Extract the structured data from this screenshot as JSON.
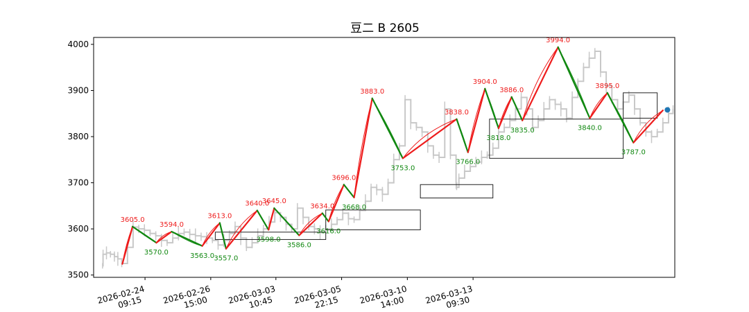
{
  "chart_data": {
    "type": "line",
    "title": "豆二 B 2605",
    "xlabel": "",
    "ylabel": "",
    "ylim": [
      3495,
      4015
    ],
    "xlim": [
      0,
      100
    ],
    "grid": false,
    "legend": "none",
    "y_ticks": [
      3500,
      3600,
      3700,
      3800,
      3900,
      4000
    ],
    "x_ticks": [
      {
        "x": 7.6,
        "label": [
          "2026-02-24",
          "09:15"
        ]
      },
      {
        "x": 19.2,
        "label": [
          "2026-02-26",
          "15:00"
        ]
      },
      {
        "x": 30.7,
        "label": [
          "2026-03-03",
          "10:45"
        ]
      },
      {
        "x": 42.3,
        "label": [
          "2026-03-05",
          "22:15"
        ]
      },
      {
        "x": 53.9,
        "label": [
          "2026-03-10",
          "14:00"
        ]
      },
      {
        "x": 65.5,
        "label": [
          "2026-03-13",
          "09:30"
        ]
      }
    ],
    "colors": {
      "price": "#c8c8c8",
      "up_stroke": "#ee1c1c",
      "down_stroke": "#118811",
      "high_label": "#ee1c1c",
      "low_label": "#118811",
      "box": "#222222",
      "current": "#1f77b4"
    },
    "price": [
      [
        0.1,
        3520
      ],
      [
        0.2,
        3545
      ],
      [
        0.8,
        3548
      ],
      [
        1.5,
        3545
      ],
      [
        2.2,
        3540
      ],
      [
        2.8,
        3535
      ],
      [
        3.5,
        3525
      ],
      [
        4.5,
        3560
      ],
      [
        5.5,
        3604
      ],
      [
        6.5,
        3600
      ],
      [
        7.5,
        3597
      ],
      [
        8.5,
        3590
      ],
      [
        9.5,
        3585
      ],
      [
        10.5,
        3575
      ],
      [
        11.5,
        3570
      ],
      [
        12.5,
        3580
      ],
      [
        13.5,
        3590
      ],
      [
        14.5,
        3593
      ],
      [
        15.5,
        3588
      ],
      [
        16.5,
        3585
      ],
      [
        17.5,
        3583
      ],
      [
        18.5,
        3580
      ],
      [
        19.5,
        3575
      ],
      [
        20.5,
        3565
      ],
      [
        21.5,
        3575
      ],
      [
        22.5,
        3590
      ],
      [
        23.5,
        3605
      ],
      [
        24.5,
        3580
      ],
      [
        25.5,
        3560
      ],
      [
        26.5,
        3570
      ],
      [
        27.5,
        3585
      ],
      [
        28.5,
        3600
      ],
      [
        29.5,
        3615
      ],
      [
        30.5,
        3635
      ],
      [
        31.5,
        3625
      ],
      [
        32.5,
        3610
      ],
      [
        33.5,
        3600
      ],
      [
        34.5,
        3645
      ],
      [
        35.5,
        3625
      ],
      [
        36.5,
        3605
      ],
      [
        37.5,
        3600
      ],
      [
        38.5,
        3592
      ],
      [
        39.5,
        3600
      ],
      [
        40.5,
        3610
      ],
      [
        41.5,
        3620
      ],
      [
        42.5,
        3634
      ],
      [
        43.5,
        3622
      ],
      [
        44.5,
        3620
      ],
      [
        45.5,
        3640
      ],
      [
        46.5,
        3660
      ],
      [
        47.5,
        3690
      ],
      [
        48.5,
        3685
      ],
      [
        49.5,
        3675
      ],
      [
        50.5,
        3700
      ],
      [
        51.5,
        3750
      ],
      [
        52.5,
        3780
      ],
      [
        53.5,
        3880
      ],
      [
        54.5,
        3830
      ],
      [
        55.5,
        3820
      ],
      [
        56.5,
        3810
      ],
      [
        57.5,
        3780
      ],
      [
        58.5,
        3760
      ],
      [
        59.5,
        3755
      ],
      [
        60.5,
        3860
      ],
      [
        61.5,
        3760
      ],
      [
        62.5,
        3700
      ],
      [
        62.6,
        3690
      ],
      [
        63.0,
        3710
      ],
      [
        64.0,
        3725
      ],
      [
        65.0,
        3735
      ],
      [
        66.0,
        3745
      ],
      [
        67.0,
        3755
      ],
      [
        68.0,
        3760
      ],
      [
        69.0,
        3775
      ],
      [
        70.0,
        3810
      ],
      [
        71.0,
        3820
      ],
      [
        72.0,
        3835
      ],
      [
        73.0,
        3860
      ],
      [
        74.0,
        3885
      ],
      [
        75.0,
        3860
      ],
      [
        76.0,
        3820
      ],
      [
        77.0,
        3835
      ],
      [
        78.0,
        3860
      ],
      [
        79.0,
        3880
      ],
      [
        80.0,
        3870
      ],
      [
        81.0,
        3860
      ],
      [
        82.0,
        3840
      ],
      [
        83.0,
        3885
      ],
      [
        84.0,
        3920
      ],
      [
        85.0,
        3950
      ],
      [
        86.0,
        3970
      ],
      [
        87.0,
        3985
      ],
      [
        88.0,
        3940
      ],
      [
        89.0,
        3910
      ],
      [
        90.0,
        3880
      ],
      [
        91.0,
        3860
      ],
      [
        92.0,
        3875
      ],
      [
        93.0,
        3890
      ],
      [
        94.0,
        3860
      ],
      [
        95.0,
        3830
      ],
      [
        96.0,
        3810
      ],
      [
        97.0,
        3800
      ],
      [
        98.0,
        3810
      ],
      [
        99.0,
        3830
      ],
      [
        100.0,
        3850
      ],
      [
        100.8,
        3860
      ]
    ],
    "pivots": [
      {
        "x": 3.6,
        "y": 3524,
        "kind": "low"
      },
      {
        "x": 5.4,
        "y": 3605,
        "kind": "high",
        "label": "3605.0"
      },
      {
        "x": 9.6,
        "y": 3570,
        "kind": "low",
        "label": "3570.0"
      },
      {
        "x": 12.3,
        "y": 3594,
        "kind": "high",
        "label": "3594.0"
      },
      {
        "x": 17.7,
        "y": 3563,
        "kind": "low",
        "label": "3563.0"
      },
      {
        "x": 20.8,
        "y": 3613,
        "kind": "high",
        "label": "3613.0"
      },
      {
        "x": 21.9,
        "y": 3557,
        "kind": "low",
        "label": "3557.0"
      },
      {
        "x": 27.4,
        "y": 3640,
        "kind": "high",
        "label": "3640.0"
      },
      {
        "x": 29.4,
        "y": 3598,
        "kind": "low",
        "label": "3598.0"
      },
      {
        "x": 30.4,
        "y": 3645,
        "kind": "high",
        "label": "3645.0"
      },
      {
        "x": 34.8,
        "y": 3586,
        "kind": "low",
        "label": "3586.0"
      },
      {
        "x": 38.9,
        "y": 3634,
        "kind": "high",
        "label": "3634.0"
      },
      {
        "x": 40.0,
        "y": 3616,
        "kind": "low",
        "label": "3616.0"
      },
      {
        "x": 42.7,
        "y": 3696,
        "kind": "high",
        "label": "3696.0"
      },
      {
        "x": 44.5,
        "y": 3668,
        "kind": "low",
        "label": "3668.0"
      },
      {
        "x": 47.7,
        "y": 3883,
        "kind": "high",
        "label": "3883.0"
      },
      {
        "x": 53.1,
        "y": 3753,
        "kind": "low",
        "label": "3753.0"
      },
      {
        "x": 62.6,
        "y": 3838,
        "kind": "high",
        "label": "3838.0"
      },
      {
        "x": 64.6,
        "y": 3766,
        "kind": "low",
        "label": "3766.0"
      },
      {
        "x": 67.6,
        "y": 3904,
        "kind": "high",
        "label": "3904.0"
      },
      {
        "x": 70.0,
        "y": 3818,
        "kind": "low",
        "label": "3818.0"
      },
      {
        "x": 72.3,
        "y": 3886,
        "kind": "high",
        "label": "3886.0"
      },
      {
        "x": 74.2,
        "y": 3835,
        "kind": "low",
        "label": "3835.0"
      },
      {
        "x": 80.5,
        "y": 3994,
        "kind": "high",
        "label": "3994.0"
      },
      {
        "x": 86.1,
        "y": 3840,
        "kind": "low",
        "label": "3840.0"
      },
      {
        "x": 89.2,
        "y": 3895,
        "kind": "high",
        "label": "3895.0"
      },
      {
        "x": 93.8,
        "y": 3787,
        "kind": "low",
        "label": "3787.0"
      },
      {
        "x": 99.0,
        "y": 3857,
        "kind": "high"
      }
    ],
    "boxes": [
      {
        "x0": 20.0,
        "x1": 39.5,
        "y0": 3577,
        "y1": 3593
      },
      {
        "x0": 39.5,
        "x1": 56.2,
        "y0": 3598,
        "y1": 3641
      },
      {
        "x0": 56.2,
        "x1": 69.0,
        "y0": 3667,
        "y1": 3696
      },
      {
        "x0": 68.4,
        "x1": 92.0,
        "y0": 3753,
        "y1": 3838
      },
      {
        "x0": 92.0,
        "x1": 98.0,
        "y0": 3840,
        "y1": 3895
      }
    ],
    "current_point": {
      "x": 99.8,
      "y": 3858
    }
  }
}
